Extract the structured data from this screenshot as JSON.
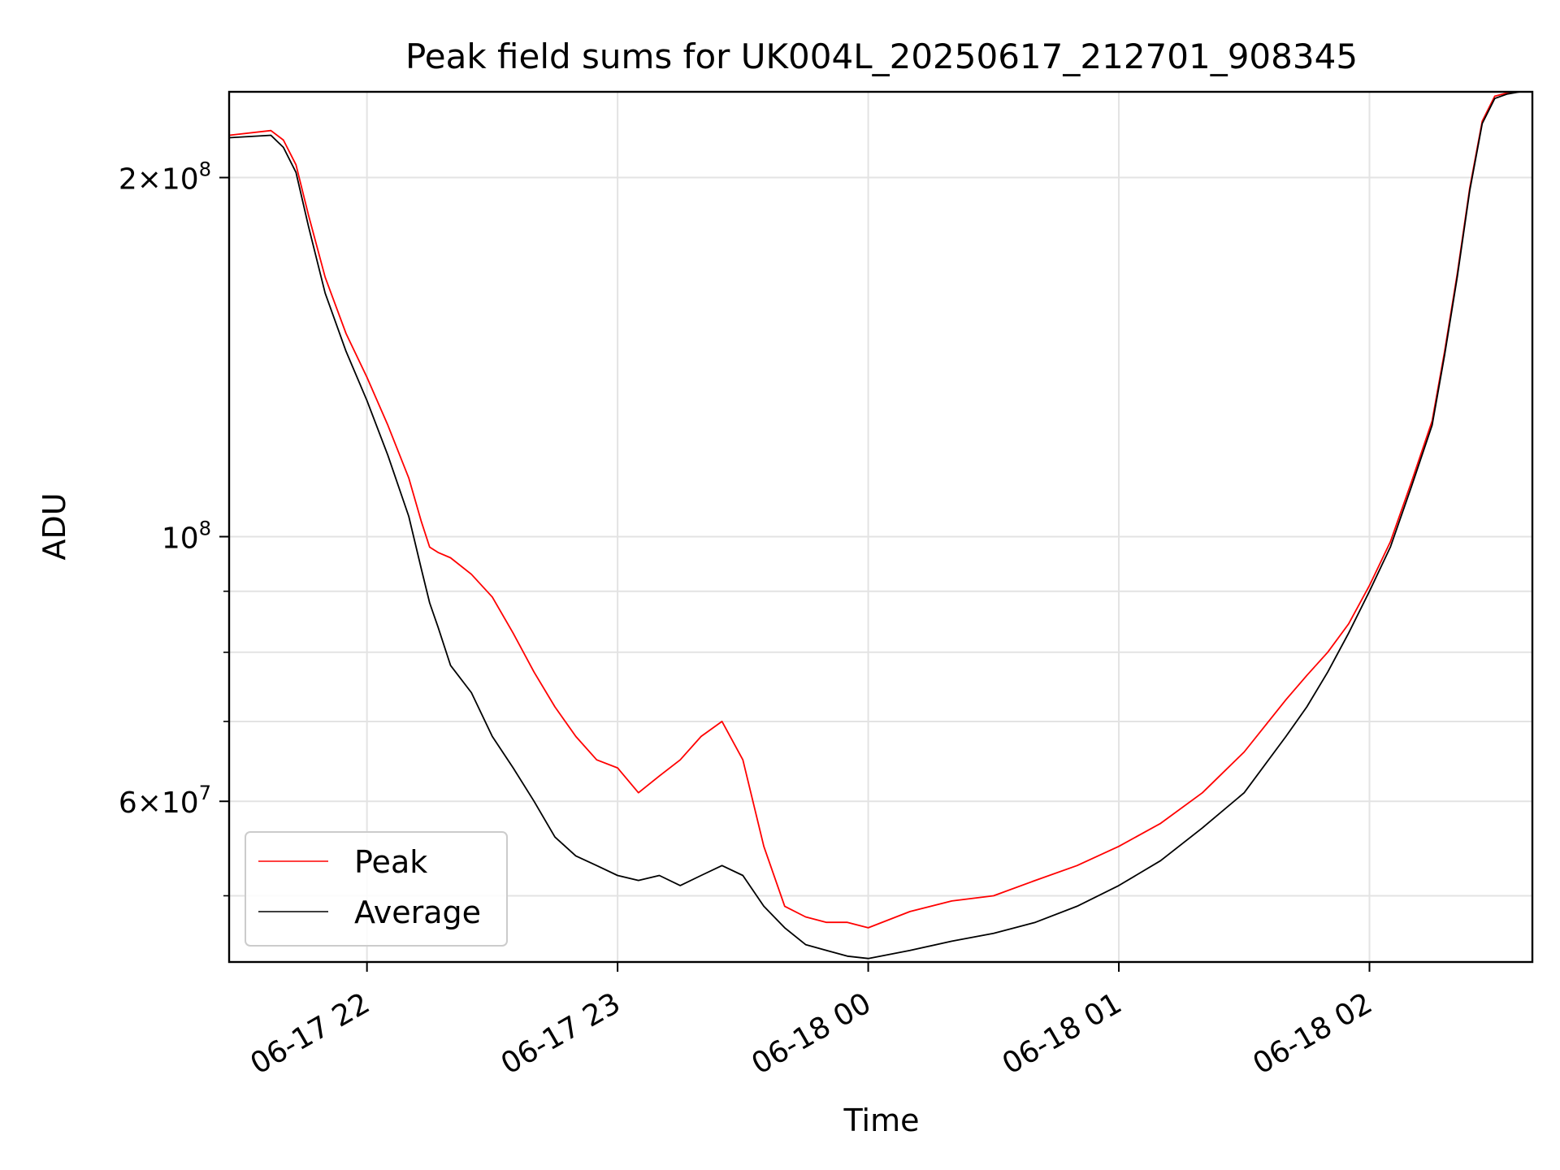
{
  "chart_data": {
    "type": "line",
    "title": "Peak field sums for UK004L_20250617_212701_908345",
    "xlabel": "Time",
    "ylabel": "ADU",
    "yscale": "log",
    "ylim": [
      44000000,
      236000000
    ],
    "xlim": [
      "2025-06-17 21:27",
      "2025-06-18 02:39"
    ],
    "grid": true,
    "legend_position": "lower-left",
    "x_ticks": [
      {
        "label": "06-17 22",
        "value": "2025-06-17 22:00"
      },
      {
        "label": "06-17 23",
        "value": "2025-06-17 23:00"
      },
      {
        "label": "06-18 00",
        "value": "2025-06-18 00:00"
      },
      {
        "label": "06-18 01",
        "value": "2025-06-18 01:00"
      },
      {
        "label": "06-18 02",
        "value": "2025-06-18 02:00"
      }
    ],
    "y_ticks": [
      {
        "label_base": "2×10",
        "label_exp": "8",
        "value": 200000000
      },
      {
        "label_base": "10",
        "label_exp": "8",
        "value": 100000000
      },
      {
        "label_base": "6×10",
        "label_exp": "7",
        "value": 60000000
      }
    ],
    "y_minor_ticks": [
      50000000,
      70000000,
      80000000,
      90000000
    ],
    "series": [
      {
        "name": "Average",
        "color": "#000000",
        "x": [
          "2025-06-17 21:27",
          "2025-06-17 21:37",
          "2025-06-17 21:40",
          "2025-06-17 21:43",
          "2025-06-17 21:46",
          "2025-06-17 21:50",
          "2025-06-17 21:55",
          "2025-06-17 22:00",
          "2025-06-17 22:05",
          "2025-06-17 22:10",
          "2025-06-17 22:13",
          "2025-06-17 22:15",
          "2025-06-17 22:17",
          "2025-06-17 22:20",
          "2025-06-17 22:25",
          "2025-06-17 22:30",
          "2025-06-17 22:35",
          "2025-06-17 22:40",
          "2025-06-17 22:45",
          "2025-06-17 22:50",
          "2025-06-17 22:55",
          "2025-06-17 23:00",
          "2025-06-17 23:05",
          "2025-06-17 23:10",
          "2025-06-17 23:15",
          "2025-06-17 23:20",
          "2025-06-17 23:25",
          "2025-06-17 23:30",
          "2025-06-17 23:35",
          "2025-06-17 23:40",
          "2025-06-17 23:45",
          "2025-06-17 23:50",
          "2025-06-17 23:55",
          "2025-06-18 00:00",
          "2025-06-18 00:10",
          "2025-06-18 00:20",
          "2025-06-18 00:30",
          "2025-06-18 00:40",
          "2025-06-18 00:50",
          "2025-06-18 01:00",
          "2025-06-18 01:10",
          "2025-06-18 01:20",
          "2025-06-18 01:30",
          "2025-06-18 01:40",
          "2025-06-18 01:45",
          "2025-06-18 01:50",
          "2025-06-18 01:55",
          "2025-06-18 02:00",
          "2025-06-18 02:05",
          "2025-06-18 02:10",
          "2025-06-18 02:15",
          "2025-06-18 02:18",
          "2025-06-18 02:21",
          "2025-06-18 02:24",
          "2025-06-18 02:27",
          "2025-06-18 02:30",
          "2025-06-18 02:33",
          "2025-06-18 02:36",
          "2025-06-18 02:39"
        ],
        "y": [
          216000000,
          217000000,
          212000000,
          202000000,
          182000000,
          160000000,
          143000000,
          130000000,
          117000000,
          104000000,
          94000000,
          88000000,
          84000000,
          78000000,
          74000000,
          68000000,
          64000000,
          60000000,
          56000000,
          54000000,
          53000000,
          52000000,
          51500000,
          52000000,
          51000000,
          52000000,
          53000000,
          52000000,
          49000000,
          47000000,
          45500000,
          45000000,
          44500000,
          44300000,
          45000000,
          45800000,
          46500000,
          47500000,
          49000000,
          51000000,
          53500000,
          57000000,
          61000000,
          68000000,
          72000000,
          77000000,
          83000000,
          90000000,
          98000000,
          110000000,
          124000000,
          142000000,
          165000000,
          195000000,
          222000000,
          233000000,
          235000000,
          236000000,
          236000000
        ]
      },
      {
        "name": "Peak",
        "color": "#ff0000",
        "x": [
          "2025-06-17 21:27",
          "2025-06-17 21:37",
          "2025-06-17 21:40",
          "2025-06-17 21:43",
          "2025-06-17 21:46",
          "2025-06-17 21:50",
          "2025-06-17 21:55",
          "2025-06-17 22:00",
          "2025-06-17 22:05",
          "2025-06-17 22:10",
          "2025-06-17 22:13",
          "2025-06-17 22:15",
          "2025-06-17 22:17",
          "2025-06-17 22:20",
          "2025-06-17 22:25",
          "2025-06-17 22:30",
          "2025-06-17 22:35",
          "2025-06-17 22:40",
          "2025-06-17 22:45",
          "2025-06-17 22:50",
          "2025-06-17 22:55",
          "2025-06-17 23:00",
          "2025-06-17 23:05",
          "2025-06-17 23:10",
          "2025-06-17 23:15",
          "2025-06-17 23:20",
          "2025-06-17 23:25",
          "2025-06-17 23:30",
          "2025-06-17 23:35",
          "2025-06-17 23:40",
          "2025-06-17 23:45",
          "2025-06-17 23:50",
          "2025-06-17 23:55",
          "2025-06-18 00:00",
          "2025-06-18 00:10",
          "2025-06-18 00:20",
          "2025-06-18 00:30",
          "2025-06-18 00:40",
          "2025-06-18 00:50",
          "2025-06-18 01:00",
          "2025-06-18 01:10",
          "2025-06-18 01:20",
          "2025-06-18 01:30",
          "2025-06-18 01:40",
          "2025-06-18 01:45",
          "2025-06-18 01:50",
          "2025-06-18 01:55",
          "2025-06-18 02:00",
          "2025-06-18 02:05",
          "2025-06-18 02:10",
          "2025-06-18 02:15",
          "2025-06-18 02:18",
          "2025-06-18 02:21",
          "2025-06-18 02:24",
          "2025-06-18 02:27",
          "2025-06-18 02:30",
          "2025-06-18 02:33",
          "2025-06-18 02:36",
          "2025-06-18 02:39"
        ],
        "y": [
          217000000,
          219000000,
          215000000,
          205000000,
          186000000,
          165000000,
          148000000,
          136000000,
          124000000,
          112000000,
          103000000,
          98000000,
          97000000,
          96000000,
          93000000,
          89000000,
          83000000,
          77000000,
          72000000,
          68000000,
          65000000,
          64000000,
          61000000,
          63000000,
          65000000,
          68000000,
          70000000,
          65000000,
          55000000,
          49000000,
          48000000,
          47500000,
          47500000,
          47000000,
          48500000,
          49500000,
          50000000,
          51500000,
          53000000,
          55000000,
          57500000,
          61000000,
          66000000,
          73000000,
          76500000,
          80000000,
          84500000,
          91000000,
          99000000,
          111000000,
          125000000,
          143000000,
          166000000,
          196000000,
          223000000,
          234000000,
          235500000,
          236000000,
          236000000
        ]
      }
    ]
  }
}
